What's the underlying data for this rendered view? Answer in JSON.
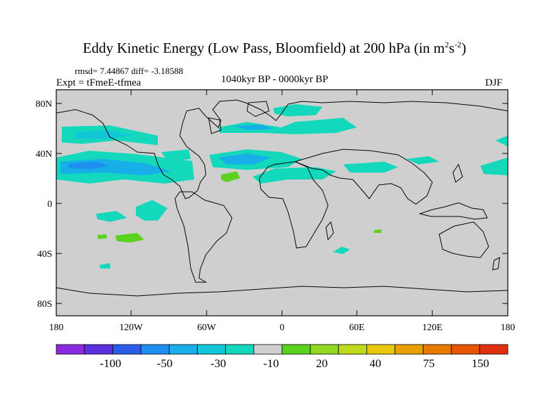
{
  "title": {
    "main": "Eddy Kinetic Energy (Low Pass, Bloomfield) at 200 hPa (in m",
    "sup1": "2",
    "mid": "s",
    "sup2": "-2",
    "end": ")"
  },
  "subtitle": {
    "stats": "rmsd= 7.44867 diff= -3.18588",
    "experiment": "Expt = tFmeE-tfmea",
    "period": "1040kyr BP - 0000kyr BP",
    "season": "DJF"
  },
  "axes": {
    "y_ticks": [
      "80N",
      "40N",
      "0",
      "40S",
      "80S"
    ],
    "x_ticks": [
      "180",
      "120W",
      "60W",
      "0",
      "60E",
      "120E",
      "180"
    ]
  },
  "colorbar": {
    "labels": [
      "-100",
      "-50",
      "-30",
      "-10",
      "20",
      "40",
      "75",
      "150"
    ],
    "colors": [
      "#8a2be2",
      "#5a30e0",
      "#2a5ce8",
      "#1e8ef0",
      "#18aee8",
      "#12c6d8",
      "#14d8bc",
      "#cfcfcf",
      "#5ad21e",
      "#90d820",
      "#c0d81a",
      "#e8c80a",
      "#e8a000",
      "#e87a00",
      "#e85400",
      "#e03010"
    ]
  },
  "colors": {
    "ocean_land_background": "#cfcfcf",
    "teal": "#14d8bc",
    "cyan": "#12c6d8",
    "blue": "#18aee8",
    "green": "#5ad21e"
  }
}
